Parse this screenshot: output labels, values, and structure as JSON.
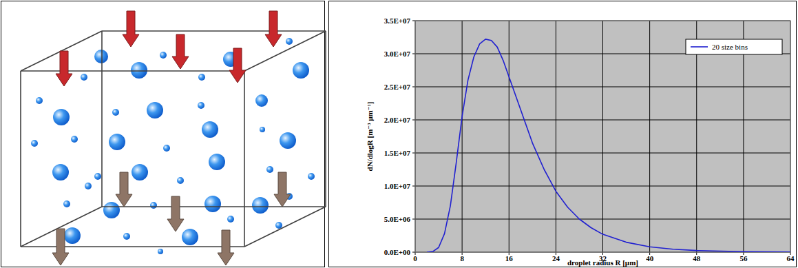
{
  "chart_data": {
    "type": "line",
    "x_label": "droplet radius R [µm]",
    "y_label": "dN/dlogR [m⁻³ µm⁻¹]",
    "series": [
      {
        "name": "20 size bins",
        "color": "#2020d0",
        "x": [
          2,
          3,
          4,
          5,
          6,
          7,
          8,
          9,
          10,
          11,
          12,
          13,
          14,
          15,
          16,
          18,
          20,
          22,
          24,
          26,
          28,
          30,
          32,
          36,
          40,
          44,
          48,
          56,
          64
        ],
        "values": [
          0,
          100000,
          700000,
          2800000,
          7000000,
          13500000,
          20500000,
          26000000,
          29500000,
          31500000,
          32200000,
          32000000,
          31000000,
          29000000,
          26500000,
          21500000,
          16500000,
          12500000,
          9200000,
          6800000,
          5000000,
          3700000,
          2700000,
          1500000,
          800000,
          450000,
          250000,
          80000,
          30000
        ]
      }
    ],
    "xlim": [
      0,
      64
    ],
    "xticks": [
      0,
      8,
      16,
      24,
      32,
      40,
      48,
      56,
      64
    ],
    "ylim": [
      0,
      35000000
    ],
    "yticks": [
      {
        "value": 0,
        "label": "0.0E+00"
      },
      {
        "value": 5000000,
        "label": "5.0E+06"
      },
      {
        "value": 10000000,
        "label": "1.0E+07"
      },
      {
        "value": 15000000,
        "label": "1.5E+07"
      },
      {
        "value": 20000000,
        "label": "2.0E+07"
      },
      {
        "value": 25000000,
        "label": "2.5E+07"
      },
      {
        "value": 30000000,
        "label": "3.0E+07"
      },
      {
        "value": 35000000,
        "label": "3.5E+07"
      }
    ],
    "grid": true,
    "legend": "upper right"
  }
}
